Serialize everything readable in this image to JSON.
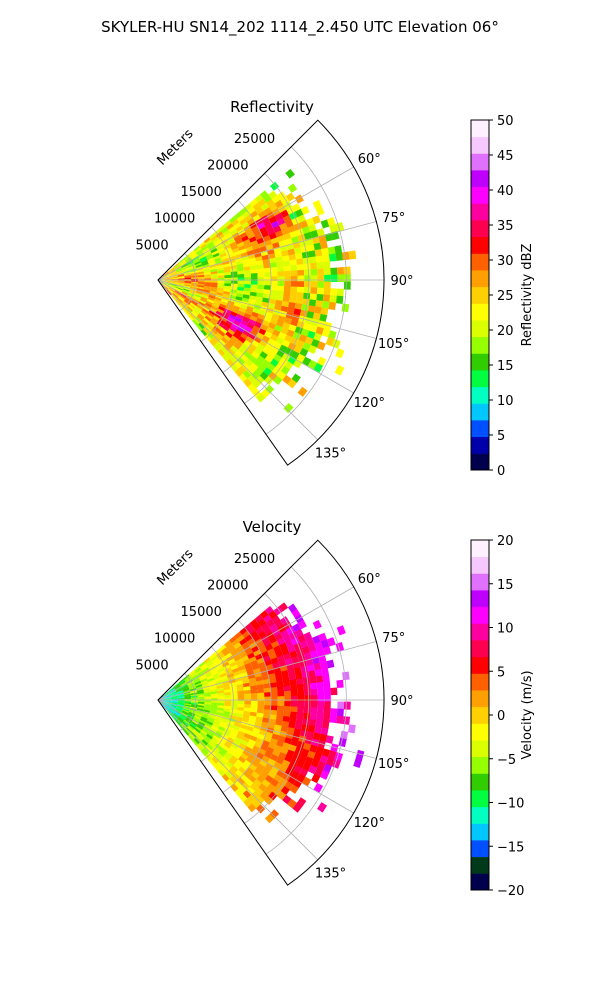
{
  "figure": {
    "suptitle": "SKYLER-HU  SN14_202  1114_2.450 UTC Elevation 06°"
  },
  "chart_data": [
    {
      "type": "heatmap",
      "projection": "polar-sector",
      "title": "Reflectivity",
      "range_axis_label": "Meters",
      "range_unit": "m",
      "range_max": 30000,
      "range_ticks": [
        5000,
        10000,
        15000,
        20000,
        25000
      ],
      "range_tick_labels": [
        "5000",
        "10000",
        "15000",
        "20000",
        "25000"
      ],
      "azimuth_min_deg": 45,
      "azimuth_max_deg": 145,
      "data_azimuth_min_deg": 50,
      "data_azimuth_max_deg": 140,
      "azimuth_ticks_deg": [
        60,
        75,
        90,
        105,
        120,
        135
      ],
      "azimuth_tick_labels": [
        "60°",
        "75°",
        "90°",
        "105°",
        "120°",
        "135°"
      ],
      "grid": true,
      "field_summary": "Mostly 20-30 dBZ across the sector; cores of 30-40 dBZ near 15000-20000 m at 60-70° and 10000-15000 m at 110-125°; >40 dBZ near 3000 m at 120°; sparse 18-22 dBZ speckles at the outer edge near 24000-28000 m.",
      "colorbar": {
        "label": "Reflectivity dBZ",
        "min": 0,
        "max": 50,
        "ticks": [
          0,
          5,
          10,
          15,
          20,
          25,
          30,
          35,
          40,
          45,
          50
        ],
        "tick_labels": [
          "0",
          "5",
          "10",
          "15",
          "20",
          "25",
          "30",
          "35",
          "40",
          "45",
          "50"
        ],
        "colors": [
          "#00004c",
          "#0000aa",
          "#0050ff",
          "#00c8ff",
          "#00ffc0",
          "#00ff40",
          "#32cd00",
          "#96ff00",
          "#dcff00",
          "#ffff00",
          "#ffd000",
          "#ffa000",
          "#ff6000",
          "#ff0000",
          "#ff0050",
          "#ff00a0",
          "#ff00ff",
          "#c000ff",
          "#e070ff",
          "#f6c8ff",
          "#fff0ff"
        ]
      }
    },
    {
      "type": "heatmap",
      "projection": "polar-sector",
      "title": "Velocity",
      "range_axis_label": "Meters",
      "range_unit": "m",
      "range_max": 30000,
      "range_ticks": [
        5000,
        10000,
        15000,
        20000,
        25000
      ],
      "range_tick_labels": [
        "5000",
        "10000",
        "15000",
        "20000",
        "25000"
      ],
      "azimuth_min_deg": 45,
      "azimuth_max_deg": 145,
      "data_azimuth_min_deg": 50,
      "data_azimuth_max_deg": 140,
      "azimuth_ticks_deg": [
        60,
        75,
        90,
        105,
        120,
        135
      ],
      "azimuth_tick_labels": [
        "60°",
        "75°",
        "90°",
        "105°",
        "120°",
        "135°"
      ],
      "grid": true,
      "field_summary": "Near radar (<5000 m) about -8 to -10 m/s; -2 to -6 m/s to 10000 m; increasing with range to +4 to +8 m/s; +10 to +13 m/s beyond 17000 m at 55-75°; sparse +12 m/s speckles at far range near 100-135°.",
      "colorbar": {
        "label": "Velocity (m/s)",
        "min": -20,
        "max": 20,
        "ticks": [
          -20,
          -15,
          -10,
          -5,
          0,
          5,
          10,
          15,
          20
        ],
        "tick_labels": [
          "−20",
          "−15",
          "−10",
          "−5",
          "0",
          "5",
          "10",
          "15",
          "20"
        ],
        "colors": [
          "#00004c",
          "#003a1a",
          "#0050ff",
          "#00c8ff",
          "#00ffc0",
          "#00ff40",
          "#32cd00",
          "#96ff00",
          "#dcff00",
          "#ffff00",
          "#ffd000",
          "#ffa000",
          "#ff6000",
          "#ff0000",
          "#ff0050",
          "#ff00a0",
          "#ff00ff",
          "#c000ff",
          "#e070ff",
          "#f6c8ff",
          "#fff0ff"
        ]
      }
    }
  ]
}
